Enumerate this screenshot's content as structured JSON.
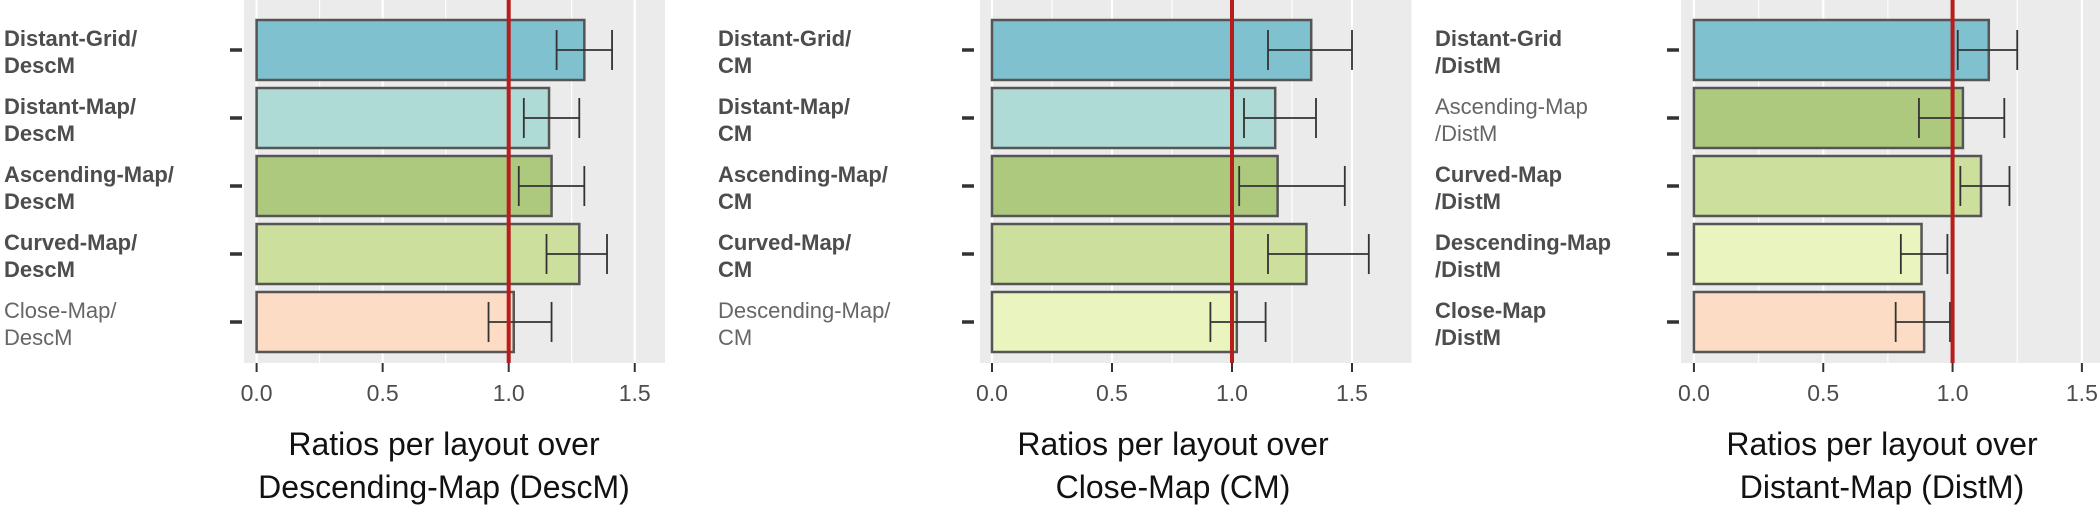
{
  "chart_data": [
    {
      "type": "bar",
      "orientation": "horizontal",
      "categories": [
        {
          "line1": "Distant-Grid/",
          "line2": "DescM",
          "bold": true
        },
        {
          "line1": "Distant-Map/",
          "line2": "DescM",
          "bold": true
        },
        {
          "line1": "Ascending-Map/",
          "line2": "DescM",
          "bold": true
        },
        {
          "line1": "Curved-Map/",
          "line2": "DescM",
          "bold": true
        },
        {
          "line1": "Close-Map/",
          "line2": "DescM",
          "bold": false
        }
      ],
      "values": [
        1.3,
        1.16,
        1.17,
        1.28,
        1.02
      ],
      "ci_low": [
        1.19,
        1.06,
        1.04,
        1.15,
        0.92
      ],
      "ci_high": [
        1.41,
        1.28,
        1.3,
        1.39,
        1.17
      ],
      "colors": [
        "#7fc1cf",
        "#afdbd6",
        "#adc97d",
        "#ccdf9c",
        "#fcdcc4"
      ],
      "reference_line": 1.0,
      "xlim": [
        -0.05,
        1.62
      ],
      "xticks": [
        "0.0",
        "0.5",
        "1.0",
        "1.5"
      ],
      "xlabel_line1": "Ratios per layout over",
      "xlabel_line2": "Descending-Map (DescM)",
      "grid": true
    },
    {
      "type": "bar",
      "orientation": "horizontal",
      "categories": [
        {
          "line1": "Distant-Grid/",
          "line2": "CM",
          "bold": true
        },
        {
          "line1": "Distant-Map/",
          "line2": "CM",
          "bold": true
        },
        {
          "line1": "Ascending-Map/",
          "line2": "CM",
          "bold": true
        },
        {
          "line1": "Curved-Map/",
          "line2": "CM",
          "bold": true
        },
        {
          "line1": "Descending-Map/",
          "line2": "CM",
          "bold": false
        }
      ],
      "values": [
        1.33,
        1.18,
        1.19,
        1.31,
        1.02
      ],
      "ci_low": [
        1.15,
        1.05,
        1.03,
        1.15,
        0.91
      ],
      "ci_high": [
        1.5,
        1.35,
        1.47,
        1.57,
        1.14
      ],
      "colors": [
        "#7fc1cf",
        "#afdbd6",
        "#adc97d",
        "#ccdf9c",
        "#e9f4bf"
      ],
      "reference_line": 1.0,
      "xlim": [
        -0.05,
        1.75
      ],
      "xticks": [
        "0.0",
        "0.5",
        "1.0",
        "1.5"
      ],
      "xlabel_line1": "Ratios per layout over",
      "xlabel_line2": "Close-Map (CM)",
      "grid": true
    },
    {
      "type": "bar",
      "orientation": "horizontal",
      "categories": [
        {
          "line1": "Distant-Grid",
          "line2": "/DistM",
          "bold": true
        },
        {
          "line1": "Ascending-Map",
          "line2": "/DistM",
          "bold": false
        },
        {
          "line1": "Curved-Map",
          "line2": "/DistM",
          "bold": true
        },
        {
          "line1": "Descending-Map",
          "line2": "/DistM",
          "bold": true
        },
        {
          "line1": "Close-Map",
          "line2": "/DistM",
          "bold": true
        }
      ],
      "values": [
        1.14,
        1.04,
        1.11,
        0.88,
        0.89
      ],
      "ci_low": [
        1.02,
        0.87,
        1.03,
        0.8,
        0.78
      ],
      "ci_high": [
        1.25,
        1.2,
        1.22,
        0.98,
        0.99
      ],
      "colors": [
        "#7fc1cf",
        "#adc97d",
        "#ccdf9c",
        "#e9f4bf",
        "#fcdcc4"
      ],
      "reference_line": 1.0,
      "xlim": [
        -0.05,
        1.57
      ],
      "xticks": [
        "0.0",
        "0.5",
        "1.0",
        "1.5"
      ],
      "xlabel_line1": "Ratios per layout over",
      "xlabel_line2": "Distant-Map (DistM)",
      "grid": true
    }
  ]
}
